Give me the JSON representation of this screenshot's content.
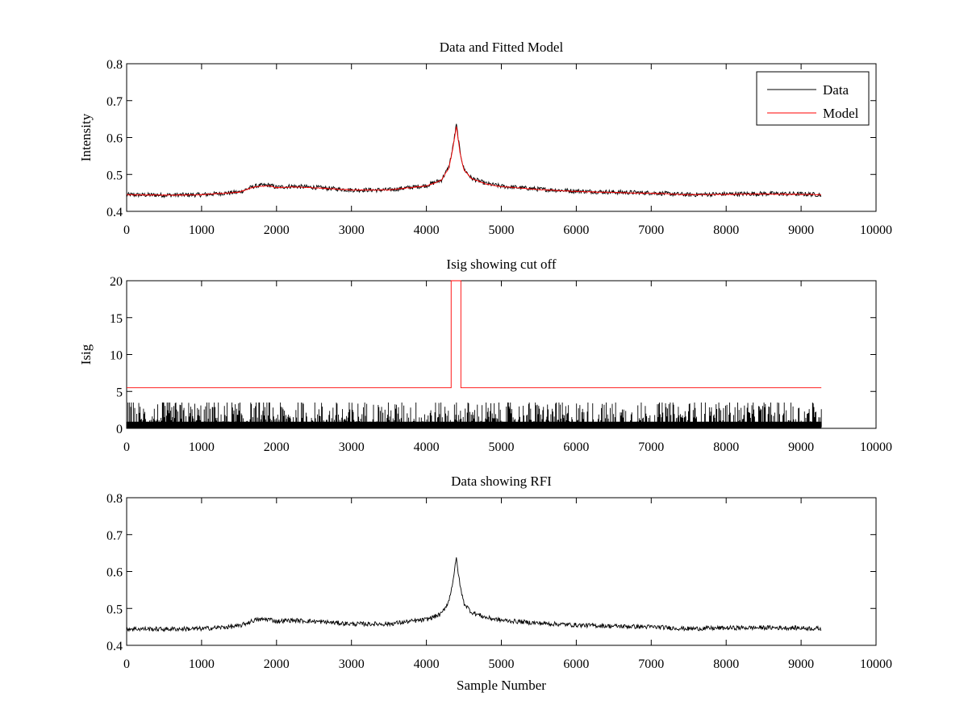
{
  "chart_data": [
    {
      "type": "line",
      "title": "Data and Fitted Model",
      "xlabel": "",
      "ylabel": "Intensity",
      "xlim": [
        0,
        10000
      ],
      "ylim": [
        0.4,
        0.8
      ],
      "xticks": [
        "0",
        "1000",
        "2000",
        "3000",
        "4000",
        "5000",
        "6000",
        "7000",
        "8000",
        "9000",
        "10000"
      ],
      "yticks": [
        "0.4",
        "0.5",
        "0.6",
        "0.7",
        "0.8"
      ],
      "legend": {
        "placement": "top-right",
        "entries": [
          "Data",
          "Model"
        ]
      },
      "series": [
        {
          "name": "Data",
          "color": "#000000",
          "x": [
            0,
            500,
            1000,
            1500,
            1700,
            1800,
            1900,
            2000,
            2200,
            2500,
            3000,
            3500,
            4000,
            4200,
            4300,
            4350,
            4400,
            4450,
            4500,
            4600,
            4800,
            5000,
            5500,
            6000,
            6500,
            7000,
            7500,
            8000,
            8500,
            9000,
            9270
          ],
          "y": [
            0.445,
            0.444,
            0.445,
            0.452,
            0.468,
            0.47,
            0.471,
            0.465,
            0.468,
            0.465,
            0.458,
            0.458,
            0.47,
            0.485,
            0.52,
            0.57,
            0.635,
            0.56,
            0.515,
            0.49,
            0.475,
            0.468,
            0.46,
            0.455,
            0.452,
            0.45,
            0.445,
            0.447,
            0.448,
            0.447,
            0.445
          ]
        },
        {
          "name": "Model",
          "color": "#ff0000",
          "x": [
            0,
            500,
            1000,
            1500,
            1700,
            1800,
            1900,
            2000,
            2200,
            2500,
            3000,
            3500,
            4000,
            4200,
            4300,
            4350,
            4400,
            4450,
            4500,
            4600,
            4800,
            5000,
            5500,
            6000,
            6500,
            7000,
            7500,
            8000,
            8500,
            9000,
            9270
          ],
          "y": [
            0.445,
            0.444,
            0.445,
            0.452,
            0.466,
            0.468,
            0.469,
            0.464,
            0.466,
            0.464,
            0.458,
            0.458,
            0.469,
            0.484,
            0.518,
            0.567,
            0.63,
            0.557,
            0.513,
            0.489,
            0.474,
            0.467,
            0.459,
            0.454,
            0.451,
            0.449,
            0.445,
            0.446,
            0.447,
            0.446,
            0.445
          ]
        }
      ]
    },
    {
      "type": "line",
      "title": "Isig showing cut off",
      "xlabel": "",
      "ylabel": "Isig",
      "xlim": [
        0,
        10000
      ],
      "ylim": [
        0,
        20
      ],
      "xticks": [
        "0",
        "1000",
        "2000",
        "3000",
        "4000",
        "5000",
        "6000",
        "7000",
        "8000",
        "9000",
        "10000"
      ],
      "yticks": [
        "0",
        "5",
        "10",
        "15",
        "20"
      ],
      "series": [
        {
          "color": "#000000",
          "x": [
            0,
            1000,
            2000,
            3000,
            4000,
            4400,
            5000,
            6000,
            7000,
            8000,
            9000,
            9270
          ],
          "y_range": [
            0,
            3.5
          ],
          "y": [
            1.0,
            1.0,
            1.0,
            1.0,
            1.0,
            1.2,
            1.0,
            1.0,
            1.0,
            1.0,
            1.0,
            1.0
          ]
        },
        {
          "color": "#ff0000",
          "x": [
            0,
            4330,
            4330,
            4460,
            4460,
            9270
          ],
          "y": [
            5.5,
            5.5,
            20,
            20,
            5.5,
            5.5
          ]
        }
      ]
    },
    {
      "type": "line",
      "title": "Data showing RFI",
      "xlabel": "Sample Number",
      "ylabel": "",
      "xlim": [
        0,
        10000
      ],
      "ylim": [
        0.4,
        0.8
      ],
      "xticks": [
        "0",
        "1000",
        "2000",
        "3000",
        "4000",
        "5000",
        "6000",
        "7000",
        "8000",
        "9000",
        "10000"
      ],
      "yticks": [
        "0.4",
        "0.5",
        "0.6",
        "0.7",
        "0.8"
      ],
      "series": [
        {
          "color": "#000000",
          "x": [
            0,
            500,
            1000,
            1500,
            1700,
            1800,
            1900,
            2000,
            2200,
            2500,
            3000,
            3500,
            4000,
            4200,
            4300,
            4350,
            4400,
            4450,
            4500,
            4600,
            4800,
            5000,
            5500,
            6000,
            6500,
            7000,
            7500,
            8000,
            8500,
            9000,
            9270
          ],
          "y": [
            0.445,
            0.444,
            0.445,
            0.452,
            0.468,
            0.47,
            0.471,
            0.465,
            0.468,
            0.465,
            0.458,
            0.458,
            0.47,
            0.485,
            0.52,
            0.57,
            0.635,
            0.56,
            0.515,
            0.49,
            0.475,
            0.468,
            0.46,
            0.455,
            0.452,
            0.45,
            0.445,
            0.447,
            0.448,
            0.447,
            0.445
          ]
        }
      ]
    }
  ]
}
